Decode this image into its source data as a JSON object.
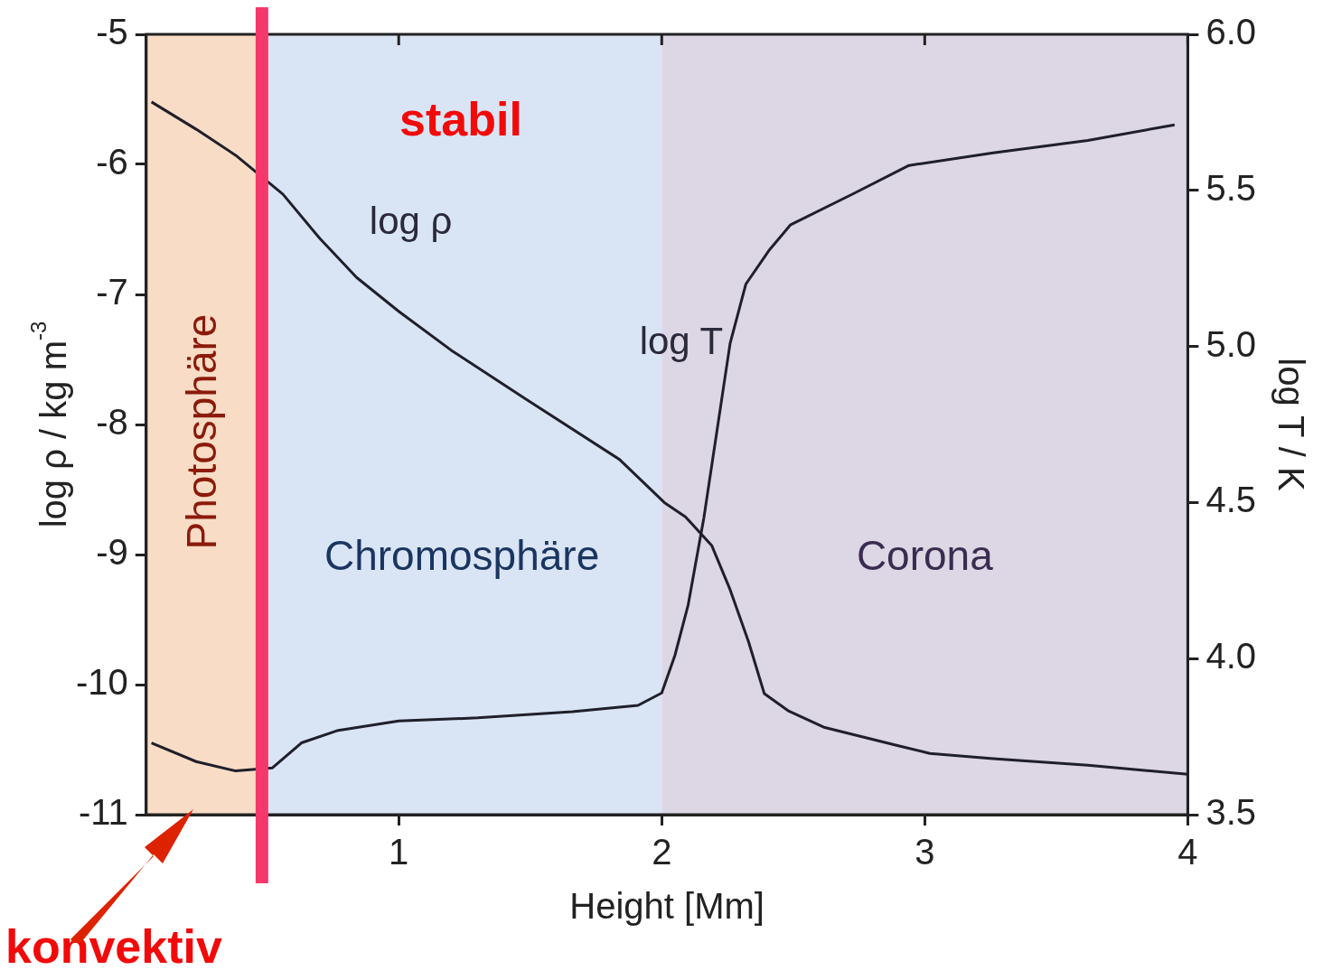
{
  "chart_data": {
    "type": "line",
    "xlabel": "Height [Mm]",
    "ylabel": "log ρ / kg m$^{-3}$",
    "y2label": "log T / K",
    "xlim": [
      0.04,
      4
    ],
    "xticks": [
      1,
      2,
      3,
      4
    ],
    "ylim": [
      -11,
      -5
    ],
    "yticks": [
      -11,
      -10,
      -9,
      -8,
      -7,
      -6,
      -5
    ],
    "y2lim": [
      3.5,
      6.0
    ],
    "y2ticks": [
      {
        "value": 3.5,
        "label": "3.5"
      },
      {
        "value": 4,
        "label": "4.0"
      },
      {
        "value": 4.5,
        "label": "4.5"
      },
      {
        "value": 5,
        "label": "5.0"
      },
      {
        "value": 5.5,
        "label": "5.5"
      },
      {
        "value": 6,
        "label": "6.0"
      }
    ],
    "grid": false,
    "legend": false,
    "marker": "none",
    "line_style": "solid",
    "series": [
      {
        "name": "log ρ",
        "color": "#1f1f2a",
        "x": [
          0.06,
          0.23,
          0.38,
          0.48,
          0.56,
          0.7,
          0.84,
          1.0,
          1.2,
          1.48,
          1.84,
          2.01,
          2.09,
          2.19,
          2.26,
          2.33,
          2.39,
          2.48,
          2.62,
          2.9,
          3.02,
          3.26,
          3.62,
          4.0
        ],
        "values": [
          -5.52,
          -5.73,
          -5.93,
          null,
          -6.23,
          -6.57,
          -6.87,
          -7.13,
          -7.43,
          -7.8,
          -8.27,
          -8.6,
          -8.71,
          -8.93,
          -9.27,
          -9.67,
          -10.07,
          -10.2,
          -10.33,
          -10.47,
          -10.53,
          -10.57,
          -10.62,
          -10.69
        ]
      },
      {
        "name": "log T",
        "color": "#1f1f2a",
        "axis": "y2",
        "x": [
          0.06,
          0.23,
          0.38,
          0.48,
          0.52,
          0.63,
          0.77,
          1.0,
          1.3,
          1.66,
          1.91,
          2.0,
          2.05,
          2.1,
          2.16,
          2.21,
          2.26,
          2.32,
          2.41,
          2.49,
          2.73,
          2.94,
          3.26,
          3.62,
          3.95
        ],
        "values": [
          3.73,
          3.67,
          3.64,
          null,
          3.65,
          3.73,
          3.77,
          3.8,
          3.81,
          3.83,
          3.85,
          3.89,
          4.01,
          4.17,
          4.45,
          4.73,
          5.01,
          5.2,
          5.31,
          5.39,
          5.49,
          5.58,
          5.62,
          5.66,
          5.71
        ]
      }
    ],
    "bands": [
      {
        "axis": "x",
        "from": 0.04,
        "to": 0.48,
        "label": "Photosphäre",
        "color": "#f8dcc6"
      },
      {
        "axis": "x",
        "from": 0.48,
        "to": 2.0,
        "label": "Chromosphäre",
        "color": "#d9e5f5"
      },
      {
        "axis": "x",
        "from": 2.0,
        "to": 4,
        "label": "Corona",
        "color": "#ddd6e4"
      }
    ],
    "ref_lines": [
      {
        "axis": "x",
        "value": 0.48,
        "color": "#f5386b"
      }
    ],
    "annotations": [
      "stabil",
      "konvektiv"
    ]
  }
}
